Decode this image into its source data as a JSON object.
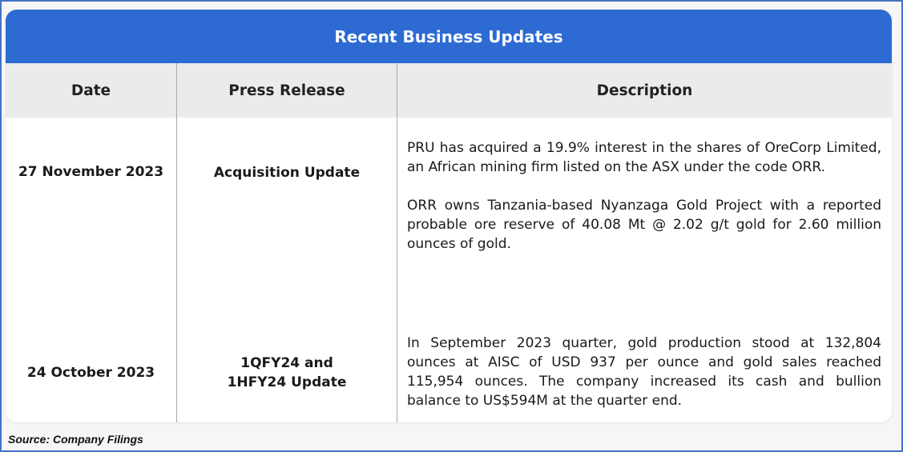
{
  "title": "Recent Business Updates",
  "columns": [
    "Date",
    "Press Release",
    "Description"
  ],
  "rows": [
    {
      "date": "27 November 2023",
      "press_release": "Acquisition Update",
      "description": [
        "PRU has acquired a 19.9% interest in the shares of OreCorp Limited, an African mining firm listed on the ASX under the code ORR.",
        "ORR owns Tanzania-based Nyanzaga Gold Project with a reported probable ore reserve of 40.08 Mt @ 2.02 g/t gold for 2.60 million ounces of gold."
      ]
    },
    {
      "date": "24 October 2023",
      "press_release": "1QFY24 and 1HFY24 Update",
      "description": [
        "In September 2023 quarter, gold production stood at 132,804 ounces at AISC of USD 937 per ounce and gold sales reached 115,954 ounces. The company increased its cash and bullion balance to US$594M at the quarter end."
      ]
    }
  ],
  "source": "Source: Company Filings",
  "colors": {
    "header": "#2d6bd3",
    "column_header_bg": "#ebebeb",
    "frame_border": "#4472c4"
  }
}
